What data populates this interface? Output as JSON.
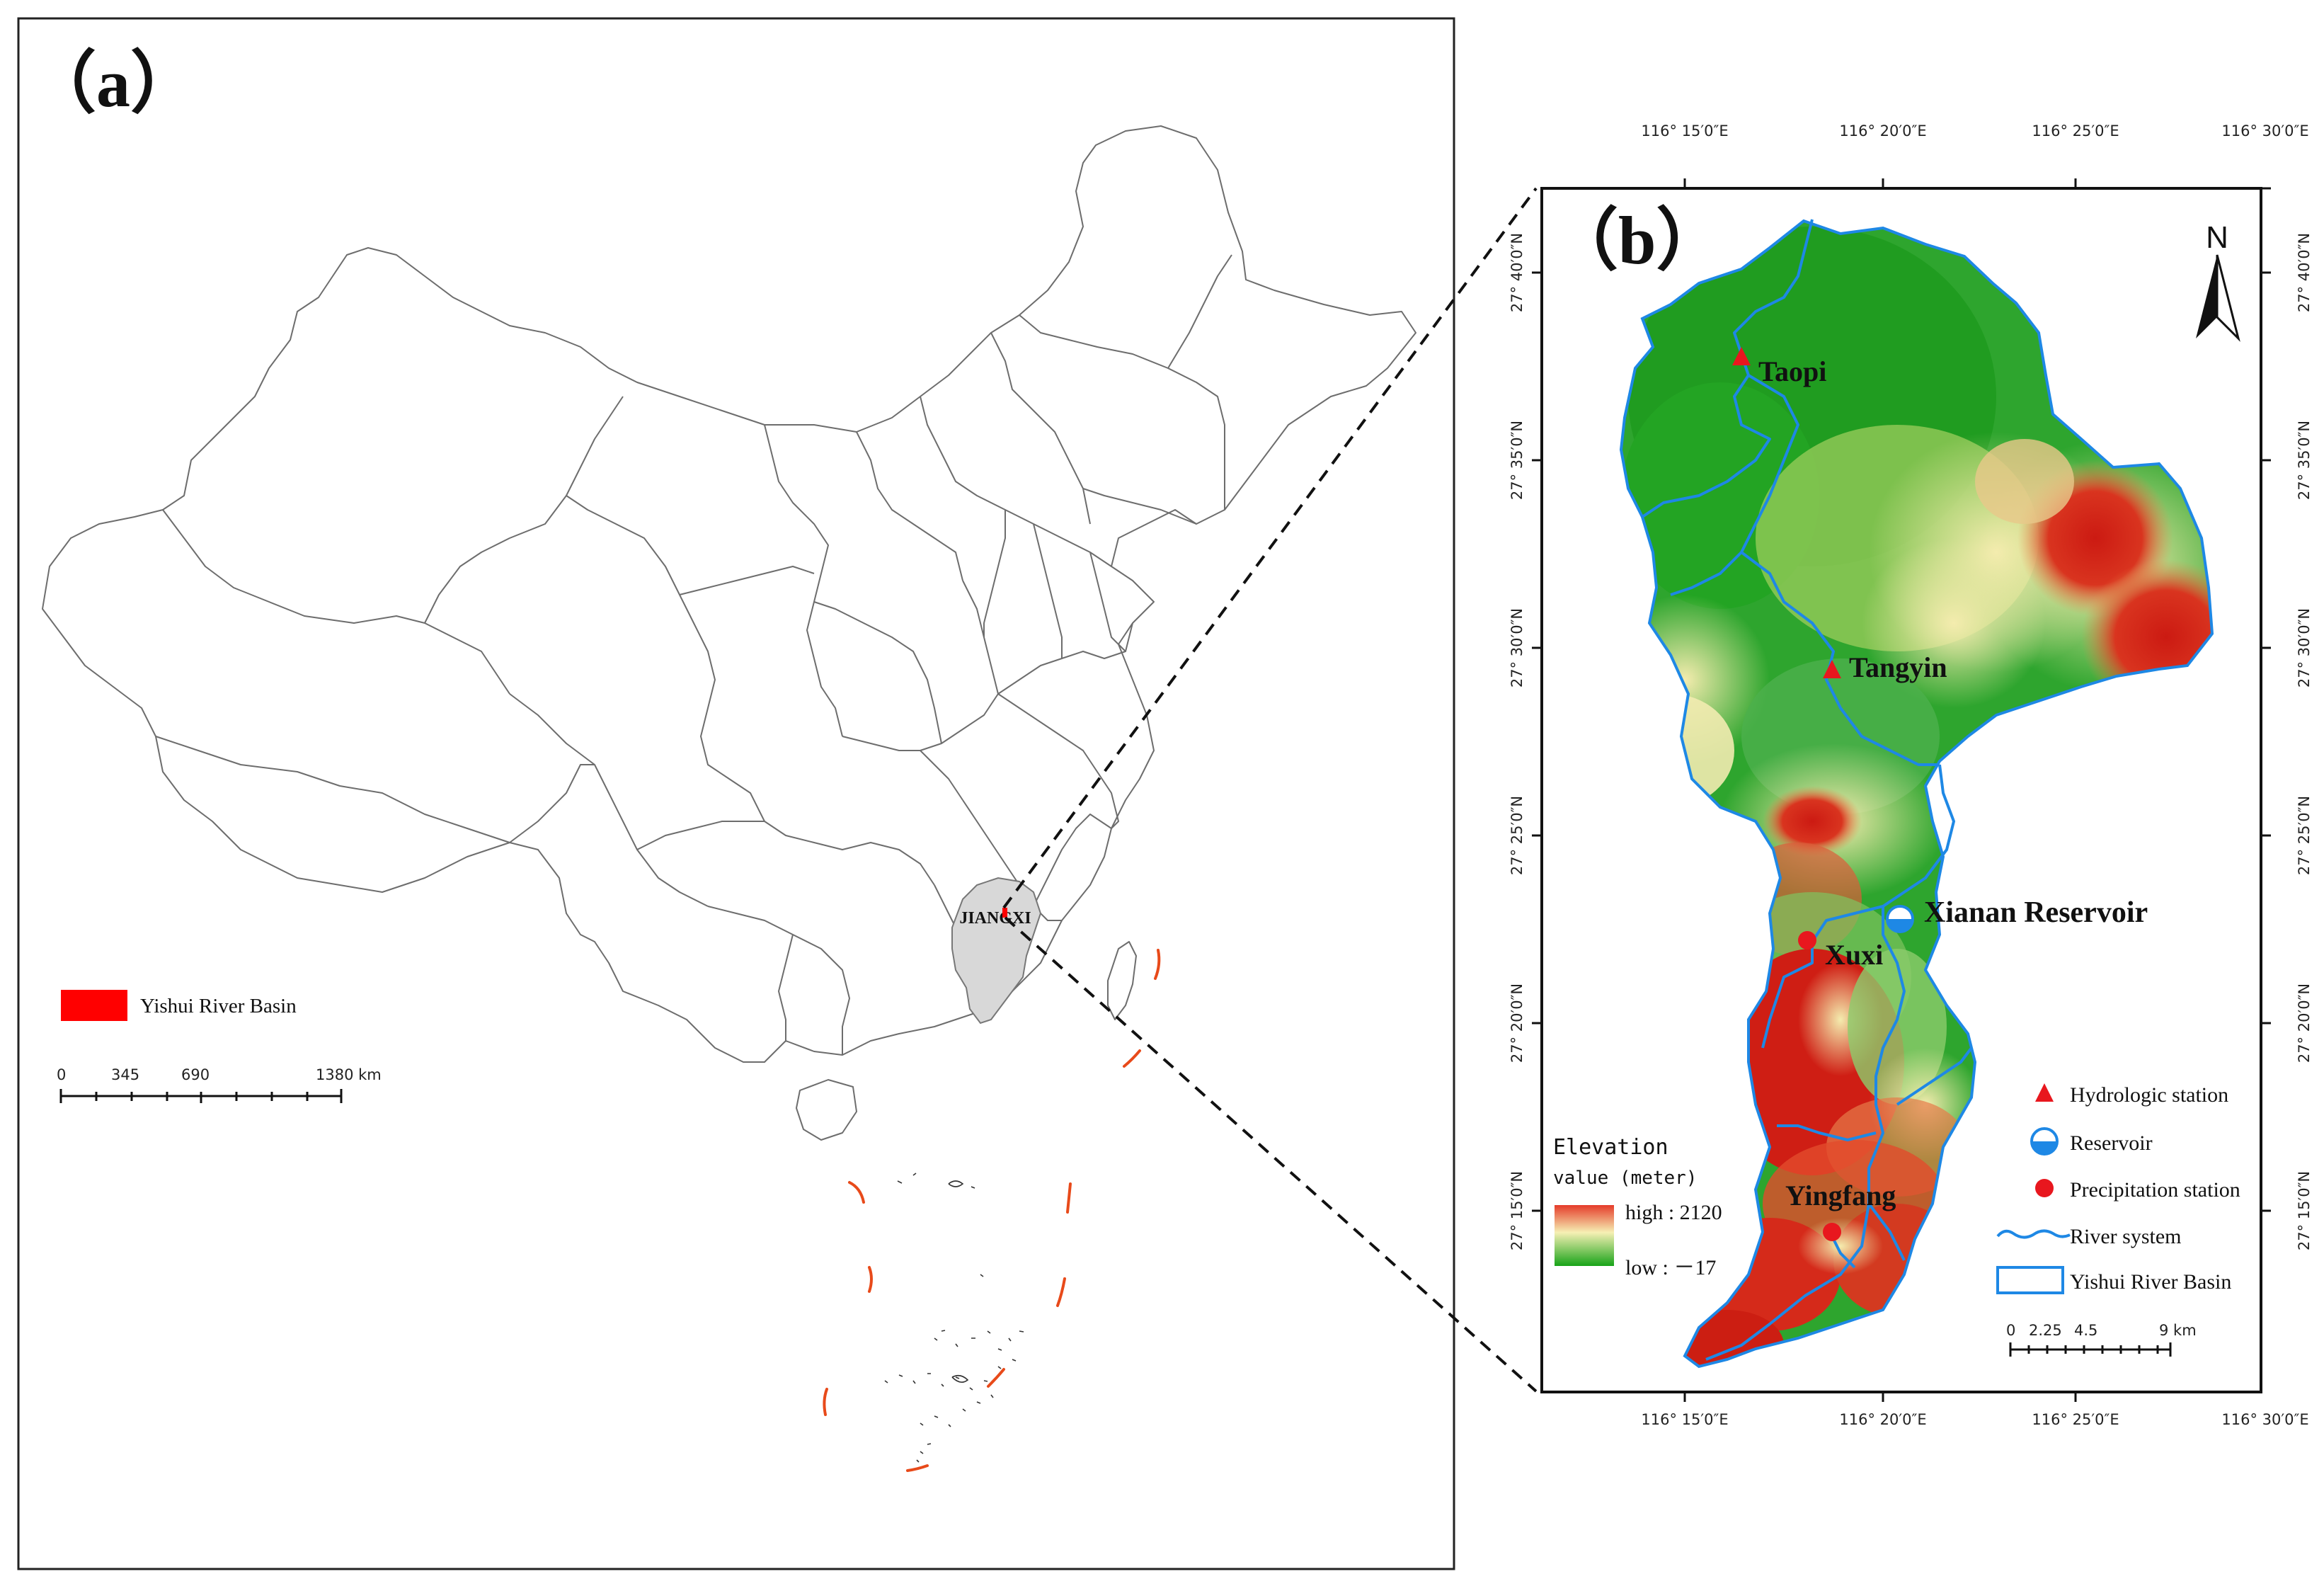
{
  "panel_a": {
    "label": "（a）",
    "highlight_province": "JIANGXI",
    "legend_label": "Yishui River Basin",
    "legend_color": "#ff0000",
    "scale_bar": {
      "ticks": [
        "0",
        "345",
        "690",
        "1380 km"
      ]
    }
  },
  "panel_b": {
    "label": "（b）",
    "north": "N",
    "lon_labels": [
      "116° 15′0″E",
      "116° 20′0″E",
      "116° 25′0″E",
      "116° 30′0″E"
    ],
    "lat_labels": [
      "27° 40′0″N",
      "27° 35′0″N",
      "27° 30′0″N",
      "27° 25′0″N",
      "27° 20′0″N",
      "27° 15′0″N"
    ],
    "stations": {
      "taopi": "Taopi",
      "tangyin": "Tangyin",
      "xianan": "Xianan Reservoir",
      "xuxi": "Xuxi",
      "yingfang": "Yingfang"
    },
    "elevation": {
      "title_line1": "Elevation",
      "title_line2": "value (meter)",
      "high": "high : 2120",
      "low": "low : －17"
    },
    "legend": {
      "hydrologic": "Hydrologic station",
      "reservoir": "Reservoir",
      "precipitation": "Precipitation station",
      "river": "River system",
      "basin": "Yishui River Basin"
    },
    "scale_bar": {
      "ticks": [
        "0",
        "2.25",
        "4.5",
        "9 km"
      ]
    },
    "colors": {
      "high": "#d42a1a",
      "mid": "#f5efb0",
      "low": "#1e9a1e",
      "river": "#1e88e5",
      "station": "#e8171e"
    }
  }
}
